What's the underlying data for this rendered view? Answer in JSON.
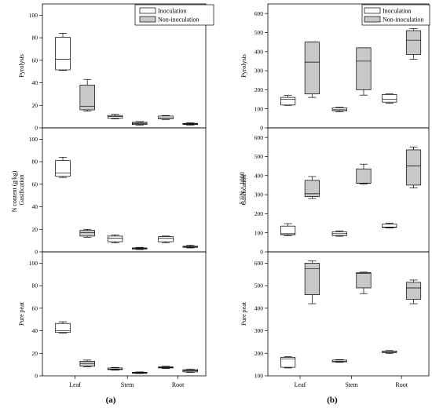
{
  "colors": {
    "inoculation": "#ffffff",
    "non_inoculation": "#c8c8c8",
    "stroke": "#000000"
  },
  "legend": {
    "inoculation": "Inoculation",
    "non_inoculation": "Non-inoculation"
  },
  "panel_labels": {
    "a": "(a)",
    "b": "(b)"
  },
  "shared_ylabels": {
    "a": "N content (g/kg)",
    "b": "δ ¹⁵N × 1000"
  },
  "chart_data": [
    {
      "type": "box",
      "panel": "a",
      "row": 1,
      "ylabel": "Pyrolysis",
      "ylim": [
        0,
        110
      ],
      "yticks": [
        0,
        20,
        40,
        60,
        80,
        100
      ],
      "categories": [
        "Leaf",
        "Stem",
        "Root"
      ],
      "series": [
        {
          "name": "Inoculation",
          "boxes": [
            {
              "min": 51,
              "q1": 51.5,
              "median": 61,
              "q3": 80.5,
              "max": 84
            },
            {
              "min": 8,
              "q1": 8.5,
              "median": 10,
              "q3": 11,
              "max": 12
            },
            {
              "min": 7.5,
              "q1": 8,
              "median": 9,
              "q3": 10.5,
              "max": 11
            }
          ]
        },
        {
          "name": "Non-inoculation",
          "boxes": [
            {
              "min": 15,
              "q1": 16,
              "median": 19,
              "q3": 38,
              "max": 43
            },
            {
              "min": 2.5,
              "q1": 3,
              "median": 4,
              "q3": 5,
              "max": 5.5
            },
            {
              "min": 2.5,
              "q1": 3,
              "median": 3.5,
              "q3": 4,
              "max": 4.5
            }
          ]
        }
      ]
    },
    {
      "type": "box",
      "panel": "a",
      "row": 2,
      "ylabel": "Gasification",
      "ylim": [
        0,
        110
      ],
      "yticks": [
        0,
        20,
        40,
        60,
        80,
        100
      ],
      "categories": [
        "Leaf",
        "Stem",
        "Root"
      ],
      "series": [
        {
          "name": "Inoculation",
          "boxes": [
            {
              "min": 66,
              "q1": 67,
              "median": 70,
              "q3": 81,
              "max": 84
            },
            {
              "min": 8,
              "q1": 9,
              "median": 12,
              "q3": 14,
              "max": 15
            },
            {
              "min": 8,
              "q1": 9,
              "median": 12,
              "q3": 13.5,
              "max": 14
            }
          ]
        },
        {
          "name": "Non-inoculation",
          "boxes": [
            {
              "min": 13,
              "q1": 14,
              "median": 17,
              "q3": 19,
              "max": 20
            },
            {
              "min": 2,
              "q1": 2.5,
              "median": 3,
              "q3": 3.5,
              "max": 4
            },
            {
              "min": 3.5,
              "q1": 4,
              "median": 4.5,
              "q3": 5,
              "max": 6
            }
          ]
        }
      ]
    },
    {
      "type": "box",
      "panel": "a",
      "row": 3,
      "ylabel": "Pure peat",
      "ylim": [
        0,
        110
      ],
      "yticks": [
        0,
        20,
        40,
        60,
        80,
        100
      ],
      "categories": [
        "Leaf",
        "Stem",
        "Root"
      ],
      "xticks_shown": true,
      "series": [
        {
          "name": "Inoculation",
          "boxes": [
            {
              "min": 38,
              "q1": 38.5,
              "median": 40,
              "q3": 46.5,
              "max": 48
            },
            {
              "min": 5,
              "q1": 5.5,
              "median": 6,
              "q3": 7,
              "max": 7.5
            },
            {
              "min": 6.5,
              "q1": 7,
              "median": 7.5,
              "q3": 8,
              "max": 8.5
            }
          ]
        },
        {
          "name": "Non-inoculation",
          "boxes": [
            {
              "min": 8,
              "q1": 8.5,
              "median": 11,
              "q3": 13,
              "max": 14
            },
            {
              "min": 2,
              "q1": 2.2,
              "median": 2.8,
              "q3": 3.2,
              "max": 3.5
            },
            {
              "min": 3,
              "q1": 3.5,
              "median": 4.5,
              "q3": 5.5,
              "max": 6
            }
          ]
        }
      ]
    },
    {
      "type": "box",
      "panel": "b",
      "row": 1,
      "ylabel": "Pyrolysis",
      "ylim": [
        0,
        650
      ],
      "yticks": [
        0,
        100,
        200,
        300,
        400,
        500,
        600
      ],
      "categories": [
        "Leaf",
        "Stem",
        "Root"
      ],
      "series": [
        {
          "name": "Inoculation",
          "boxes": [
            {
              "min": 118,
              "q1": 120,
              "median": 150,
              "q3": 160,
              "max": 170
            },
            {
              "min": 85,
              "q1": 90,
              "median": 95,
              "q3": 105,
              "max": 108
            },
            {
              "min": 130,
              "q1": 135,
              "median": 150,
              "q3": 175,
              "max": 178
            }
          ]
        },
        {
          "name": "Non-inoculation",
          "boxes": [
            {
              "min": 160,
              "q1": 178,
              "median": 345,
              "q3": 450,
              "max": 450
            },
            {
              "min": 172,
              "q1": 200,
              "median": 350,
              "q3": 420,
              "max": 420
            },
            {
              "min": 360,
              "q1": 385,
              "median": 460,
              "q3": 510,
              "max": 520
            }
          ]
        }
      ]
    },
    {
      "type": "box",
      "panel": "b",
      "row": 2,
      "ylabel": "Gasification",
      "ylim": [
        0,
        650
      ],
      "yticks": [
        0,
        100,
        200,
        300,
        400,
        500,
        600
      ],
      "categories": [
        "Leaf",
        "Stem",
        "Root"
      ],
      "series": [
        {
          "name": "Inoculation",
          "boxes": [
            {
              "min": 85,
              "q1": 90,
              "median": 95,
              "q3": 135,
              "max": 148
            },
            {
              "min": 82,
              "q1": 85,
              "median": 95,
              "q3": 105,
              "max": 110
            },
            {
              "min": 125,
              "q1": 128,
              "median": 130,
              "q3": 145,
              "max": 150
            }
          ]
        },
        {
          "name": "Non-inoculation",
          "boxes": [
            {
              "min": 280,
              "q1": 290,
              "median": 305,
              "q3": 375,
              "max": 395
            },
            {
              "min": 355,
              "q1": 360,
              "median": 360,
              "q3": 435,
              "max": 460
            },
            {
              "min": 335,
              "q1": 350,
              "median": 450,
              "q3": 535,
              "max": 550
            }
          ]
        }
      ]
    },
    {
      "type": "box",
      "panel": "b",
      "row": 3,
      "ylabel": "Pure peat",
      "ylim": [
        100,
        650
      ],
      "yticks": [
        100,
        200,
        300,
        400,
        500,
        600
      ],
      "categories": [
        "Leaf",
        "Stem",
        "Root"
      ],
      "xticks_shown": true,
      "series": [
        {
          "name": "Inoculation",
          "boxes": [
            {
              "min": 135,
              "q1": 138,
              "median": 175,
              "q3": 182,
              "max": 185
            },
            {
              "min": 160,
              "q1": 162,
              "median": 165,
              "q3": 170,
              "max": 172
            },
            {
              "min": 200,
              "q1": 203,
              "median": 205,
              "q3": 210,
              "max": 212
            }
          ]
        },
        {
          "name": "Non-inoculation",
          "boxes": [
            {
              "min": 420,
              "q1": 460,
              "median": 575,
              "q3": 600,
              "max": 610
            },
            {
              "min": 465,
              "q1": 490,
              "median": 555,
              "q3": 558,
              "max": 560
            },
            {
              "min": 420,
              "q1": 440,
              "median": 490,
              "q3": 515,
              "max": 525
            }
          ]
        }
      ]
    }
  ]
}
